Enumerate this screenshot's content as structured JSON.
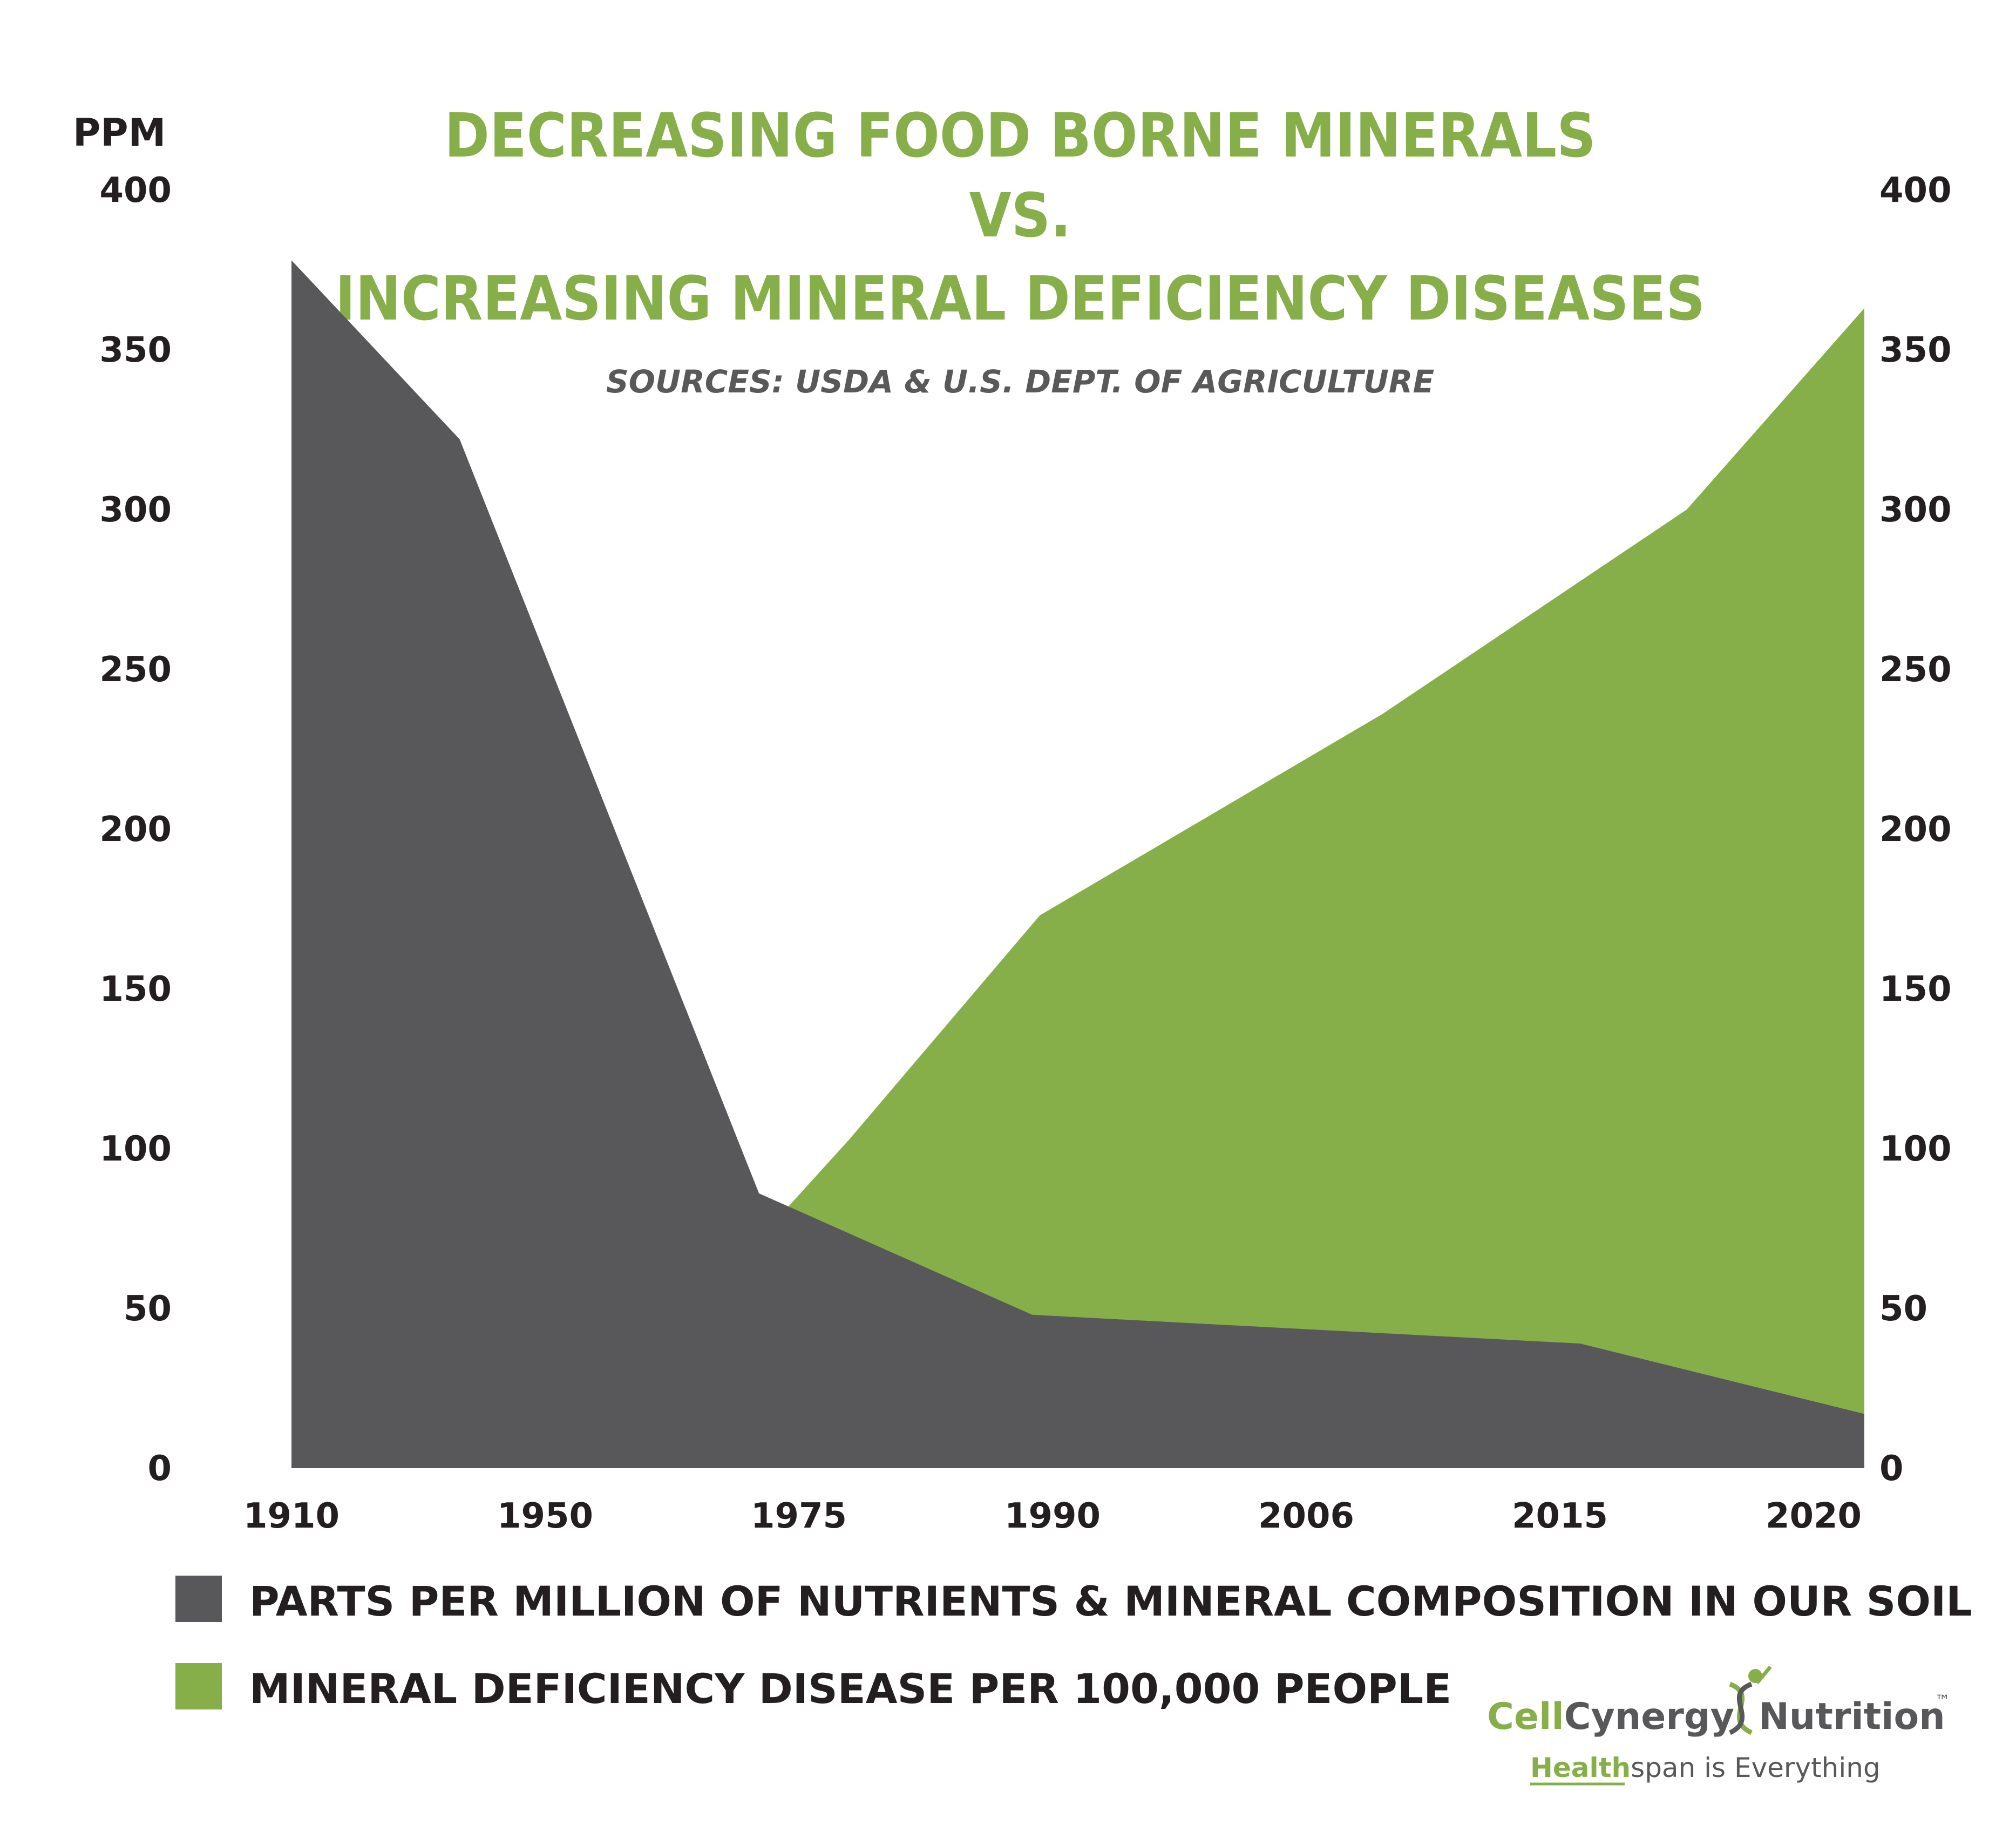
{
  "chart_data": {
    "type": "area",
    "title_lines": [
      "DECREASING FOOD BORNE MINERALS",
      "VS.",
      "INCREASING MINERAL DEFICIENCY DISEASES"
    ],
    "subtitle": "SOURCES: USDA & U.S. DEPT. OF AGRICULTURE",
    "ylabel": "PPM",
    "ylim": [
      0,
      400
    ],
    "yticks": [
      0,
      50,
      100,
      150,
      200,
      250,
      300,
      350,
      400
    ],
    "ytick_labels": [
      "0",
      "50",
      "100",
      "150",
      "200",
      "250",
      "300",
      "350",
      "400"
    ],
    "categories": [
      "1910",
      "1950",
      "1975",
      "1990",
      "2006",
      "2015",
      "2020"
    ],
    "grid": false,
    "legend_position": "bottom",
    "series": [
      {
        "name": "PARTS PER MILLION OF NUTRIENTS & MINERAL COMPOSITION IN OUR SOIL",
        "color": "#58585a",
        "points": [
          {
            "x": 0.0,
            "y": 378
          },
          {
            "x": 0.663,
            "y": 322
          },
          {
            "x": 1.843,
            "y": 86
          },
          {
            "x": 2.92,
            "y": 48
          },
          {
            "x": 5.08,
            "y": 39
          },
          {
            "x": 6.2,
            "y": 17
          }
        ]
      },
      {
        "name": "MINERAL DEFICIENCY DISEASE PER 100,000 PEOPLE",
        "color": "#86af4a",
        "points": [
          {
            "x": 1.96,
            "y": 82
          },
          {
            "x": 2.2,
            "y": 103
          },
          {
            "x": 2.95,
            "y": 173
          },
          {
            "x": 4.3,
            "y": 236
          },
          {
            "x": 5.5,
            "y": 300
          },
          {
            "x": 6.2,
            "y": 363
          }
        ]
      }
    ]
  },
  "brand": {
    "name_part1": "Cell",
    "name_part2": "Cynergy",
    "name_part3": "Nutrition",
    "trademark": "™",
    "tagline_part1": "Health",
    "tagline_part2": "span is Everything",
    "colors": {
      "green": "#86af4a",
      "gray": "#58585a",
      "dark": "#231f20"
    }
  }
}
